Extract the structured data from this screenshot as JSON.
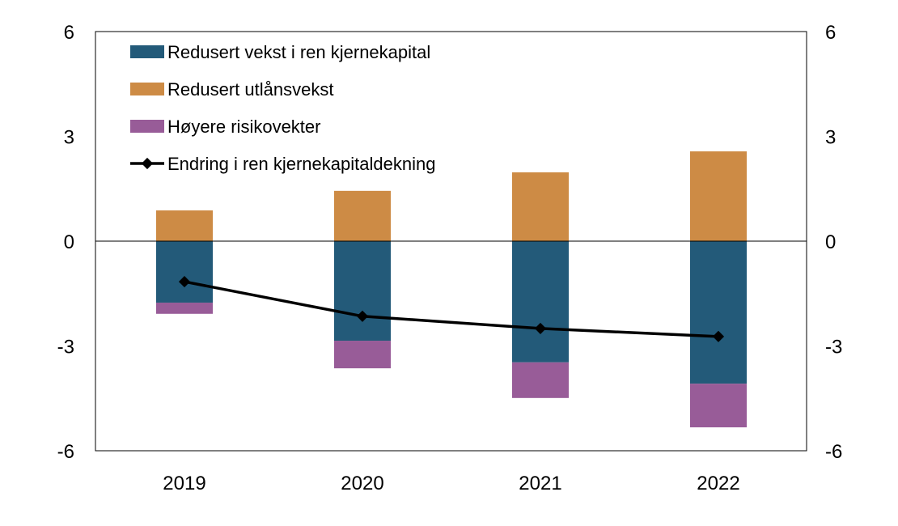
{
  "chart_data": {
    "type": "bar",
    "stacked": true,
    "categories": [
      "2019",
      "2020",
      "2021",
      "2022"
    ],
    "series": [
      {
        "name": "Redusert vekst i ren kjernekapital",
        "type": "bar",
        "color": "#235a79",
        "values": [
          -1.76,
          -2.85,
          -3.47,
          -4.08
        ]
      },
      {
        "name": "Redusert utlånsvekst",
        "type": "bar",
        "color": "#cd8b45",
        "values": [
          0.88,
          1.44,
          1.97,
          2.57
        ]
      },
      {
        "name": "Høyere risikovekter",
        "type": "bar",
        "color": "#985c98",
        "values": [
          -0.32,
          -0.79,
          -1.02,
          -1.25
        ]
      },
      {
        "name": "Endring i ren kjernekapitaldekning",
        "type": "line",
        "color": "#000000",
        "values": [
          -1.16,
          -2.15,
          -2.5,
          -2.73
        ]
      }
    ],
    "ylim": [
      -6,
      6
    ],
    "yticks": [
      6,
      3,
      0,
      -3,
      -6
    ],
    "yticks_right": [
      6,
      3,
      0,
      -3,
      -6
    ],
    "title": "",
    "xlabel": "",
    "ylabel": "",
    "legend": "top-left",
    "grid": false
  }
}
